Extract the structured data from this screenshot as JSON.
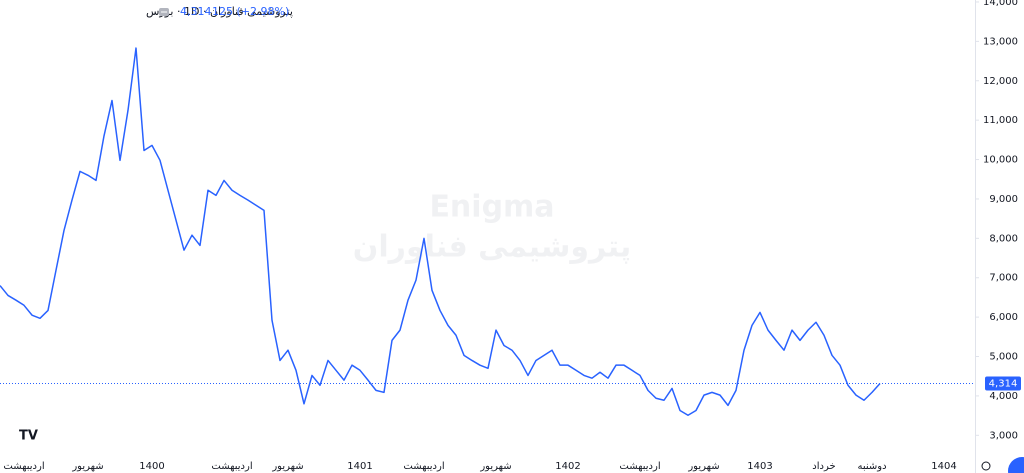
{
  "chart_data": {
    "type": "line",
    "title": "پتروشیمی فناوران · 1D · بورس",
    "change": "125 (+2.98%)",
    "watermark": [
      "Enigma",
      "پتروشیمی فناوران"
    ],
    "last_price": {
      "value": 4314,
      "label": "4,314"
    },
    "categories": [
      null,
      null,
      null,
      "اردیبهشت",
      null,
      null,
      null,
      null,
      null,
      null,
      null,
      "شهریور",
      null,
      null,
      null,
      null,
      null,
      null,
      null,
      "1400",
      null,
      null,
      null,
      null,
      null,
      null,
      null,
      null,
      null,
      "اردیبهشت",
      null,
      null,
      null,
      null,
      null,
      null,
      "شهریور",
      null,
      null,
      null,
      null,
      null,
      null,
      null,
      null,
      "1401",
      null,
      null,
      null,
      null,
      null,
      null,
      null,
      "اردیبهشت",
      null,
      null,
      null,
      null,
      null,
      null,
      null,
      null,
      "شهریور",
      null,
      null,
      null,
      null,
      null,
      null,
      null,
      null,
      "1402",
      null,
      null,
      null,
      null,
      null,
      null,
      null,
      null,
      "اردیبهشت",
      null,
      null,
      null,
      null,
      null,
      null,
      null,
      "شهریور",
      null,
      null,
      null,
      null,
      null,
      null,
      "1403",
      null,
      null,
      null,
      null,
      null,
      null,
      null,
      "خرداد",
      null,
      null,
      null,
      null,
      null,
      "دوشنبه",
      null,
      null,
      null,
      null,
      null,
      null,
      null,
      null,
      "1404",
      null,
      null,
      null,
      null
    ],
    "series": [
      {
        "name": "پتروشیمی فناوران",
        "color": "#2962ff",
        "values": [
          6800,
          6550,
          6430,
          6300,
          6050,
          5970,
          6170,
          7190,
          8200,
          8970,
          9700,
          9600,
          9470,
          10600,
          11500,
          9980,
          11250,
          12830,
          10230,
          10360,
          9980,
          9220,
          8460,
          7700,
          8080,
          7820,
          9220,
          9090,
          9470,
          9220,
          9090,
          8970,
          8840,
          8710,
          5920,
          4900,
          5160,
          4650,
          3800,
          4520,
          4270,
          4900,
          4650,
          4400,
          4780,
          4650,
          4400,
          4140,
          4090,
          5410,
          5670,
          6430,
          6940,
          8000,
          6680,
          6170,
          5790,
          5540,
          5030,
          4900,
          4780,
          4700,
          5670,
          5280,
          5160,
          4900,
          4520,
          4900,
          5030,
          5160,
          4780,
          4780,
          4650,
          4520,
          4450,
          4600,
          4450,
          4780,
          4780,
          4650,
          4520,
          4140,
          3940,
          3890,
          4190,
          3630,
          3510,
          3630,
          4020,
          4090,
          4020,
          3760,
          4140,
          5160,
          5790,
          6120,
          5670,
          5410,
          5160,
          5670,
          5410,
          5670,
          5870,
          5540,
          5030,
          4780,
          4270,
          4020,
          3890,
          4090,
          4314,
          null,
          null,
          null,
          null,
          null,
          null,
          null,
          null,
          null,
          null,
          null,
          null
        ]
      }
    ],
    "ylim": [
      2500,
      14050
    ],
    "yticks": [
      {
        "value": 3000,
        "label": "3,000"
      },
      {
        "value": 4000,
        "label": "4,000"
      },
      {
        "value": 5000,
        "label": "5,000"
      },
      {
        "value": 6000,
        "label": "6,000"
      },
      {
        "value": 7000,
        "label": "7,000"
      },
      {
        "value": 8000,
        "label": "8,000"
      },
      {
        "value": 9000,
        "label": "9,000"
      },
      {
        "value": 10000,
        "label": "10,000"
      },
      {
        "value": 11000,
        "label": "11,000"
      },
      {
        "value": 12000,
        "label": "12,000"
      },
      {
        "value": 13000,
        "label": "13,000"
      },
      {
        "value": 14000,
        "label": "14,000"
      }
    ],
    "grid": false
  }
}
